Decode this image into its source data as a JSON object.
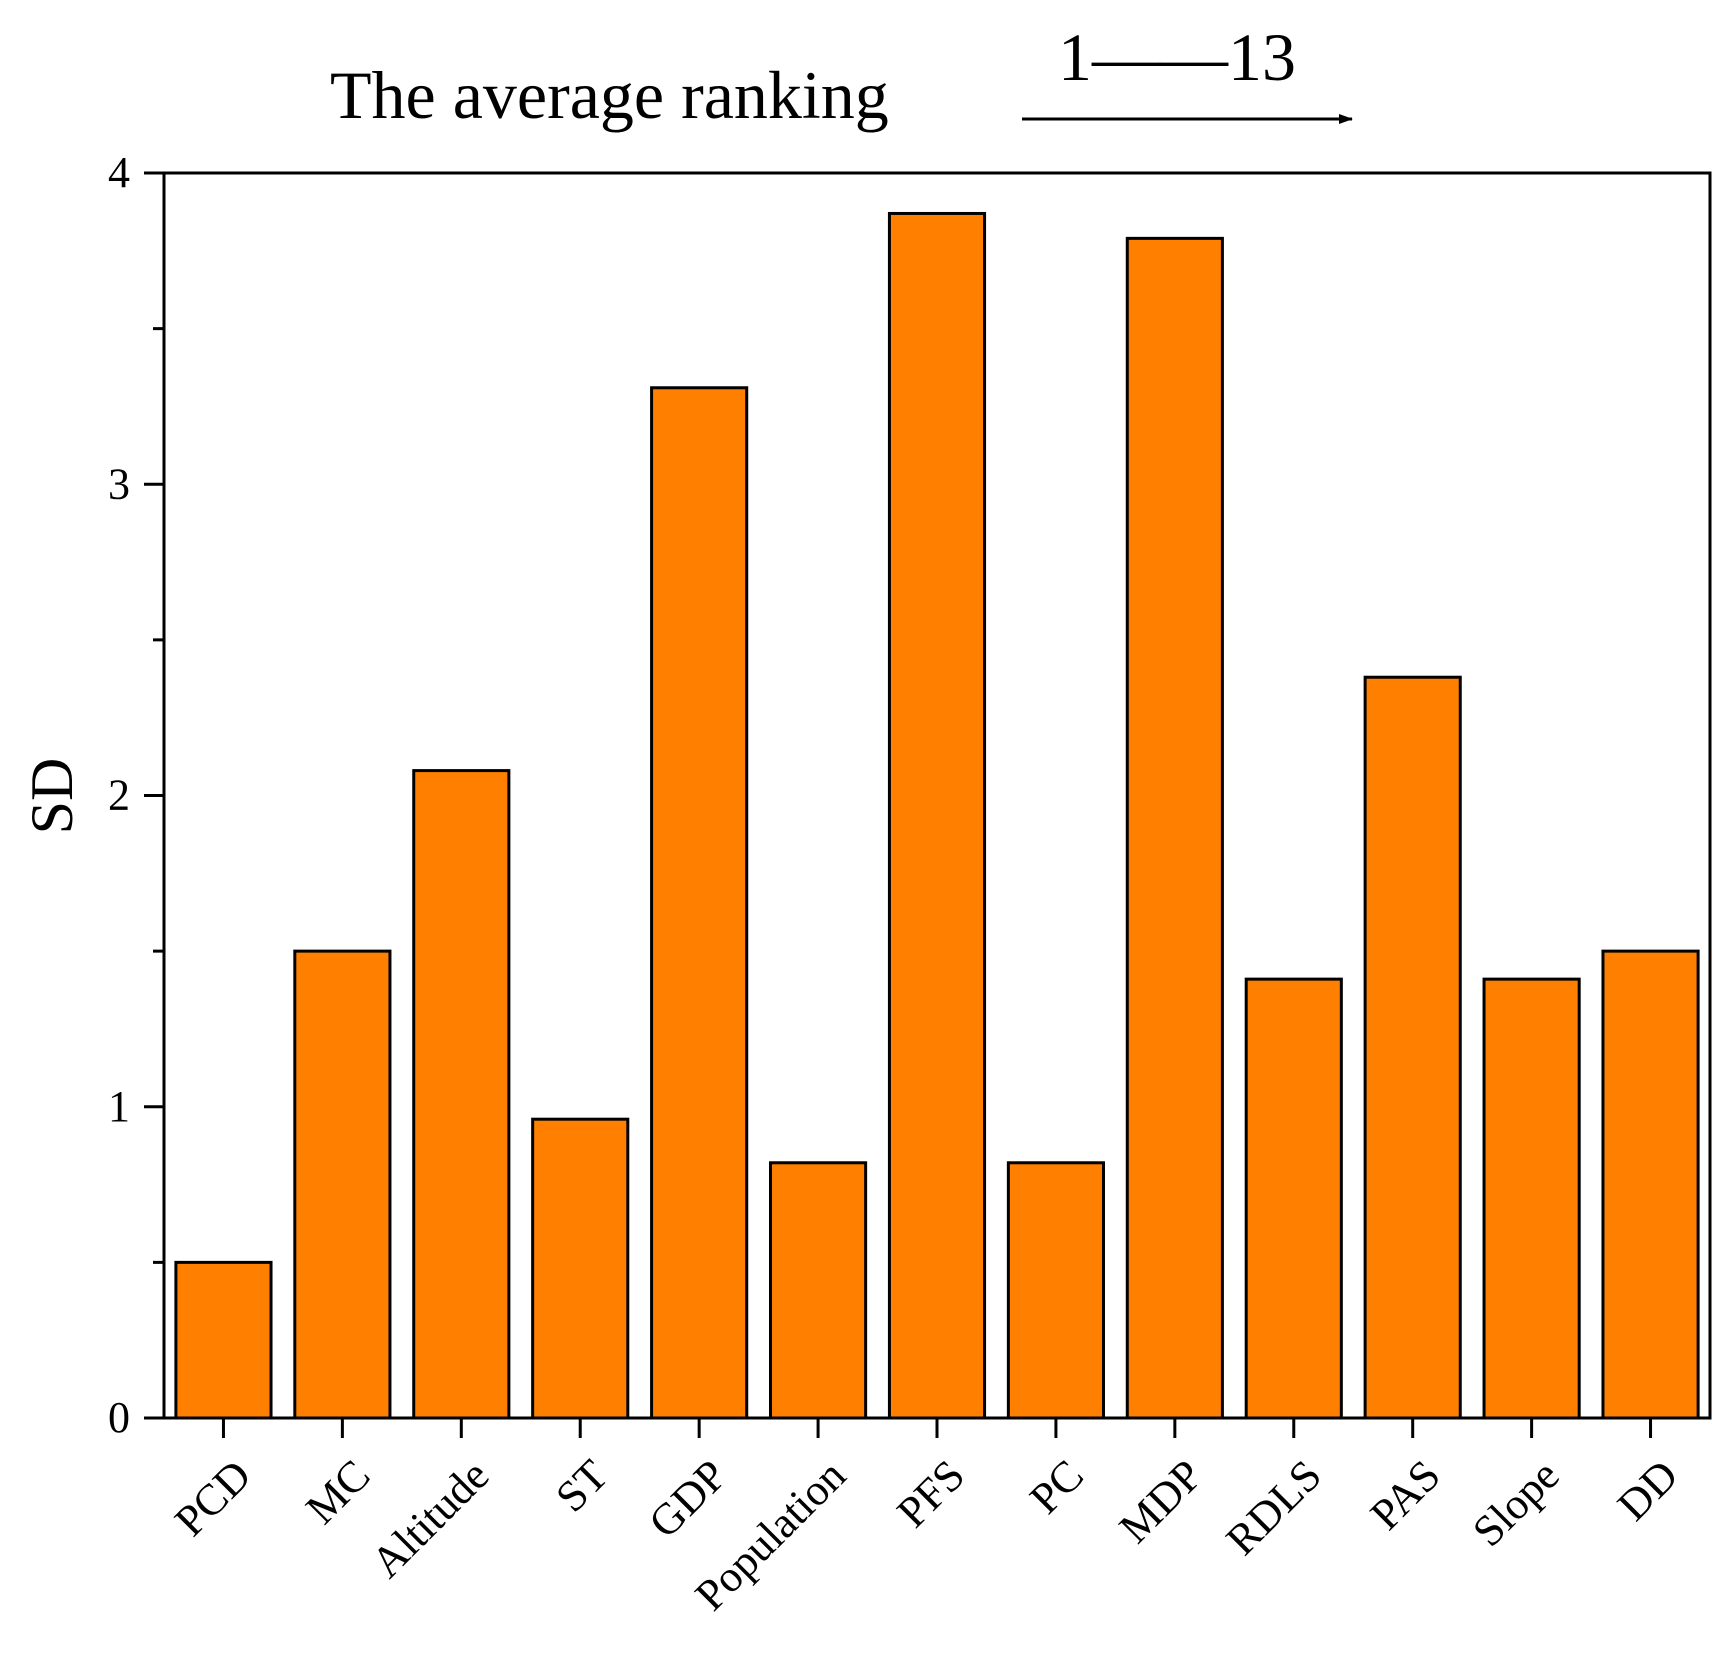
{
  "chart_data": {
    "type": "bar",
    "title": "The average ranking",
    "rank_start": "1",
    "rank_end": "13",
    "rank_dash": "——",
    "xlabel": "",
    "ylabel": "SD",
    "ylim": [
      0,
      4
    ],
    "yticks": [
      "0",
      "1",
      "2",
      "3",
      "4"
    ],
    "categories": [
      "PCD",
      "MC",
      "Altitude",
      "ST",
      "GDP",
      "Population",
      "PFS",
      "PC",
      "MDP",
      "RDLS",
      "PAS",
      "Slope",
      "DD"
    ],
    "values": [
      0.5,
      1.5,
      2.08,
      0.96,
      3.31,
      0.82,
      3.87,
      0.82,
      3.79,
      1.41,
      2.38,
      1.41,
      1.5
    ],
    "bar_color": "#FF8000",
    "grid": false
  }
}
